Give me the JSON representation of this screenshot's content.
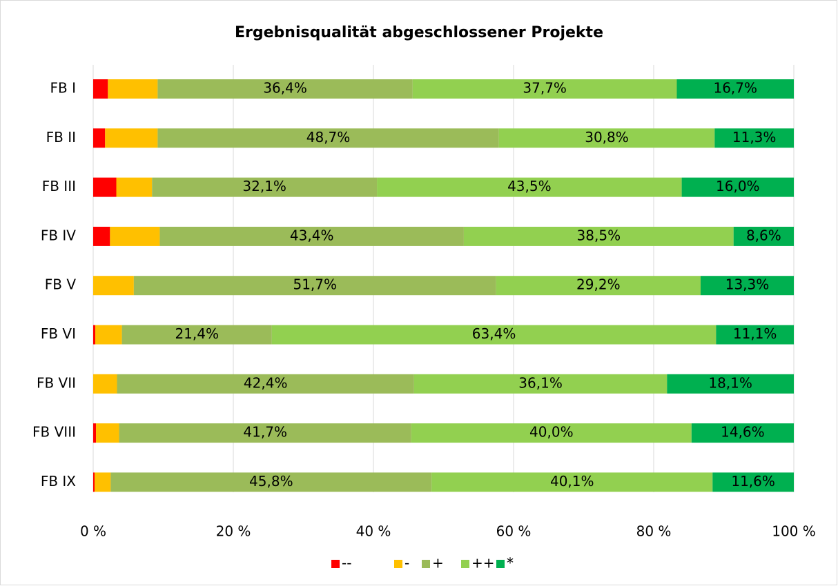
{
  "chart_data": {
    "type": "stacked_barh",
    "title": "Ergebnisqualität abgeschlossener Projekte",
    "categories": [
      "FB I",
      "FB II",
      "FB III",
      "FB IV",
      "FB V",
      "FB VI",
      "FB VII",
      "FB VIII",
      "FB IX"
    ],
    "series": [
      {
        "name": "--",
        "color": "#ff0000",
        "values": [
          2.1,
          1.7,
          3.3,
          2.4,
          0,
          0.3,
          0,
          0.4,
          0.2
        ]
      },
      {
        "name": "-",
        "color": "#ffc000",
        "values": [
          7.1,
          7.5,
          5.1,
          7.1,
          5.8,
          3.8,
          3.4,
          3.3,
          2.3
        ]
      },
      {
        "name": "+",
        "color": "#9bbb59",
        "values": [
          36.4,
          48.7,
          32.1,
          43.4,
          51.7,
          21.4,
          42.4,
          41.7,
          45.8
        ],
        "value_labels": [
          "36,4%",
          "48,7%",
          "32,1%",
          "43,4%",
          "51,7%",
          "21,4%",
          "42,4%",
          "41,7%",
          "45,8%"
        ]
      },
      {
        "name": "++",
        "color": "#92d050",
        "values": [
          37.7,
          30.8,
          43.5,
          38.5,
          29.2,
          63.4,
          36.1,
          40.0,
          40.1
        ],
        "value_labels": [
          "37,7%",
          "30,8%",
          "43,5%",
          "38,5%",
          "29,2%",
          "63,4%",
          "36,1%",
          "40,0%",
          "40,1%"
        ]
      },
      {
        "name": "*",
        "color": "#00b050",
        "values": [
          16.7,
          11.3,
          16.0,
          8.6,
          13.3,
          11.1,
          18.1,
          14.6,
          11.6
        ],
        "value_labels": [
          "16,7%",
          "11,3%",
          "16,0%",
          "8,6%",
          "13,3%",
          "11,1%",
          "18,1%",
          "14,6%",
          "11,6%"
        ]
      }
    ],
    "xlim": [
      0,
      100
    ],
    "xticks": [
      {
        "value": 0,
        "label": "0 %"
      },
      {
        "value": 20,
        "label": "20 %"
      },
      {
        "value": 40,
        "label": "40 %"
      },
      {
        "value": 60,
        "label": "60 %"
      },
      {
        "value": 80,
        "label": "80 %"
      },
      {
        "value": 100,
        "label": "100 %"
      }
    ],
    "grid": true,
    "legend": "bottom"
  }
}
